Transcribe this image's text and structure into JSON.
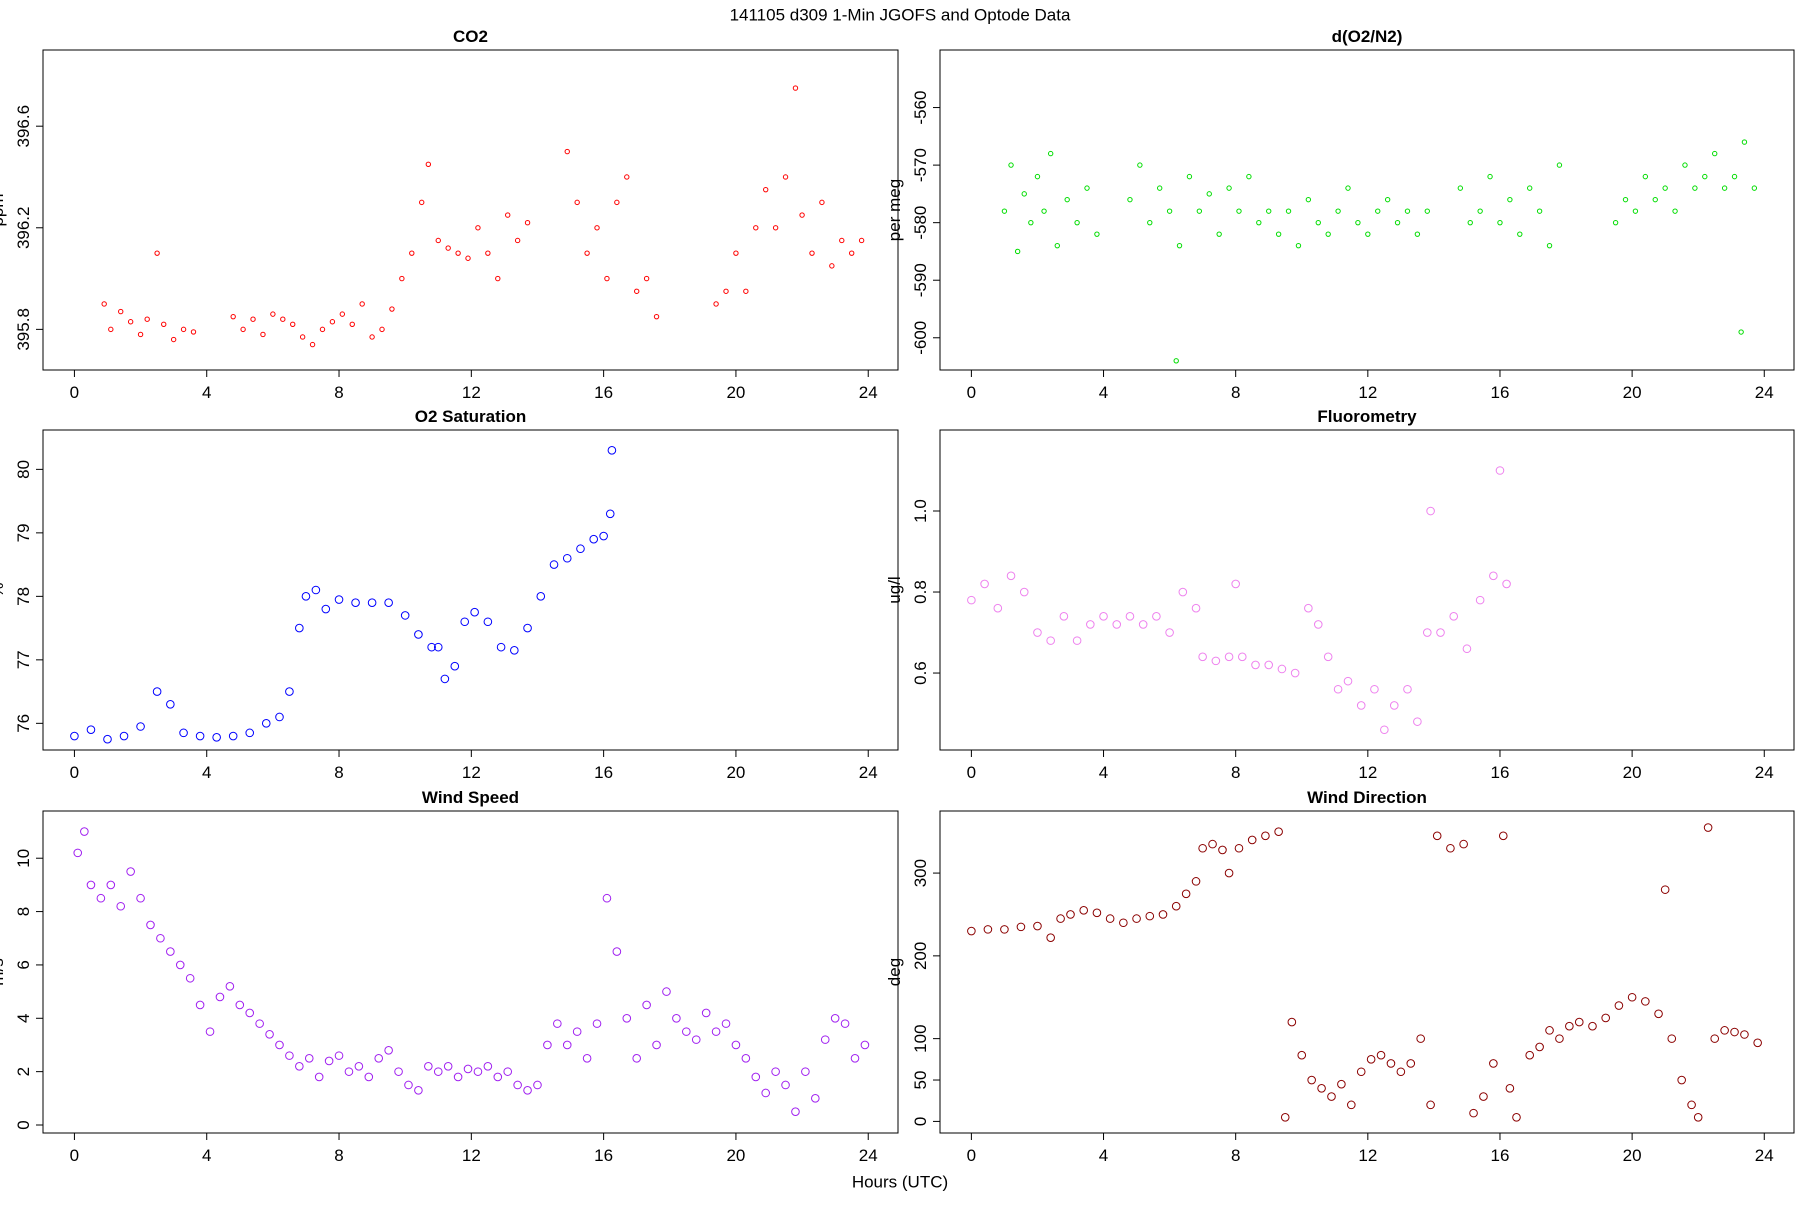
{
  "title": "141105   d309   1-Min  JGOFS and Optode Data",
  "xlabel": "Hours (UTC)",
  "chart_data": [
    {
      "type": "scatter",
      "title": "CO2",
      "ylabel": "ppm",
      "color": "#ff0000",
      "xlim": [
        -0.95,
        24.9
      ],
      "xticks": [
        0,
        4,
        8,
        12,
        16,
        20,
        24
      ],
      "ylim": [
        395.64,
        396.9
      ],
      "yticks": [
        395.8,
        396.2,
        396.6
      ],
      "x": [
        0.9,
        1.1,
        1.4,
        1.7,
        2.0,
        2.2,
        2.5,
        2.7,
        3.0,
        3.3,
        3.6,
        4.8,
        5.1,
        5.4,
        5.7,
        6.0,
        6.3,
        6.6,
        6.9,
        7.2,
        7.5,
        7.8,
        8.1,
        8.4,
        8.7,
        9.0,
        9.3,
        9.6,
        9.9,
        10.2,
        10.5,
        10.7,
        11.0,
        11.3,
        11.6,
        11.9,
        12.2,
        12.5,
        12.8,
        13.1,
        13.4,
        13.7,
        14.9,
        15.2,
        15.5,
        15.8,
        16.1,
        16.4,
        16.7,
        17.0,
        17.3,
        17.6,
        19.4,
        19.7,
        20.0,
        20.3,
        20.6,
        20.9,
        21.2,
        21.5,
        21.8,
        22.0,
        22.3,
        22.6,
        22.9,
        23.2,
        23.5,
        23.8
      ],
      "values": [
        395.9,
        395.8,
        395.87,
        395.83,
        395.78,
        395.84,
        396.1,
        395.82,
        395.76,
        395.8,
        395.79,
        395.85,
        395.8,
        395.84,
        395.78,
        395.86,
        395.84,
        395.82,
        395.77,
        395.74,
        395.8,
        395.83,
        395.86,
        395.82,
        395.9,
        395.77,
        395.8,
        395.88,
        396.0,
        396.1,
        396.3,
        396.45,
        396.15,
        396.12,
        396.1,
        396.08,
        396.2,
        396.1,
        396.0,
        396.25,
        396.15,
        396.22,
        396.5,
        396.3,
        396.1,
        396.2,
        396.0,
        396.3,
        396.4,
        395.95,
        396.0,
        395.85,
        395.9,
        395.95,
        396.1,
        395.95,
        396.2,
        396.35,
        396.2,
        396.4,
        396.75,
        396.25,
        396.1,
        396.3,
        396.05,
        396.15,
        396.1,
        396.15
      ]
    },
    {
      "type": "scatter",
      "title": "d(O2/N2)",
      "ylabel": "per meg",
      "color": "#00dd00",
      "xlim": [
        -0.95,
        24.9
      ],
      "xticks": [
        0,
        4,
        8,
        12,
        16,
        20,
        24
      ],
      "ylim": [
        -605.6,
        -550
      ],
      "yticks": [
        -600,
        -590,
        -580,
        -570,
        -560
      ],
      "x": [
        1.0,
        1.2,
        1.4,
        1.6,
        1.8,
        2.0,
        2.2,
        2.4,
        2.6,
        2.9,
        3.2,
        3.5,
        3.8,
        4.8,
        5.1,
        5.4,
        5.7,
        6.0,
        6.3,
        6.6,
        6.9,
        7.2,
        7.5,
        7.8,
        8.1,
        8.4,
        8.7,
        9.0,
        9.3,
        9.6,
        9.9,
        10.2,
        10.5,
        10.8,
        11.1,
        11.4,
        11.7,
        12.0,
        12.3,
        12.6,
        12.9,
        13.2,
        13.5,
        13.8,
        14.8,
        15.1,
        15.4,
        15.7,
        16.0,
        16.3,
        16.6,
        16.9,
        17.2,
        17.5,
        17.8,
        19.5,
        19.8,
        20.1,
        20.4,
        20.7,
        21.0,
        21.3,
        21.6,
        21.9,
        22.2,
        22.5,
        22.8,
        23.1,
        23.4,
        23.7,
        6.2,
        23.3
      ],
      "values": [
        -578,
        -570,
        -585,
        -575,
        -580,
        -572,
        -578,
        -568,
        -584,
        -576,
        -580,
        -574,
        -582,
        -576,
        -570,
        -580,
        -574,
        -578,
        -584,
        -572,
        -578,
        -575,
        -582,
        -574,
        -578,
        -572,
        -580,
        -578,
        -582,
        -578,
        -584,
        -576,
        -580,
        -582,
        -578,
        -574,
        -580,
        -582,
        -578,
        -576,
        -580,
        -578,
        -582,
        -578,
        -574,
        -580,
        -578,
        -572,
        -580,
        -576,
        -582,
        -574,
        -578,
        -584,
        -570,
        -580,
        -576,
        -578,
        -572,
        -576,
        -574,
        -578,
        -570,
        -574,
        -572,
        -568,
        -574,
        -572,
        -566,
        -574,
        -604,
        -599
      ]
    },
    {
      "type": "scatter",
      "title": "O2 Saturation",
      "ylabel": "%",
      "color": "#0000ff",
      "xlim": [
        -0.95,
        24.9
      ],
      "xticks": [
        0,
        4,
        8,
        12,
        16,
        20,
        24
      ],
      "ylim": [
        75.58,
        80.62
      ],
      "yticks": [
        76,
        77,
        78,
        79,
        80
      ],
      "x": [
        0,
        0.5,
        1,
        1.5,
        2.0,
        2.5,
        2.9,
        3.3,
        3.8,
        4.3,
        4.8,
        5.3,
        5.8,
        6.2,
        6.5,
        6.8,
        7.0,
        7.3,
        7.6,
        8.0,
        8.5,
        9.0,
        9.5,
        10.0,
        10.4,
        10.8,
        11.0,
        11.2,
        11.5,
        11.8,
        12.1,
        12.5,
        12.9,
        13.3,
        13.7,
        14.1,
        14.5,
        14.9,
        15.3,
        15.7,
        16.0,
        16.2,
        16.25
      ],
      "values": [
        75.8,
        75.9,
        75.75,
        75.8,
        75.95,
        76.5,
        76.3,
        75.85,
        75.8,
        75.78,
        75.8,
        75.85,
        76.0,
        76.1,
        76.5,
        77.5,
        78.0,
        78.1,
        77.8,
        77.95,
        77.9,
        77.9,
        77.9,
        77.7,
        77.4,
        77.2,
        77.2,
        76.7,
        76.9,
        77.6,
        77.75,
        77.6,
        77.2,
        77.15,
        77.5,
        78.0,
        78.5,
        78.6,
        78.75,
        78.9,
        78.95,
        79.3,
        80.3
      ]
    },
    {
      "type": "scatter",
      "title": "Fluorometry",
      "ylabel": "ug/l",
      "color": "#ee82ee",
      "xlim": [
        -0.95,
        24.9
      ],
      "xticks": [
        0,
        4,
        8,
        12,
        16,
        20,
        24
      ],
      "ylim": [
        0.41,
        1.2
      ],
      "yticks": [
        0.6,
        0.8,
        {
          "value": 1,
          "label": "1.0"
        }
      ],
      "x": [
        0,
        0.4,
        0.8,
        1.2,
        1.6,
        2.0,
        2.4,
        2.8,
        3.2,
        3.6,
        4.0,
        4.4,
        4.8,
        5.2,
        5.6,
        6.0,
        6.4,
        6.8,
        7.0,
        7.4,
        7.8,
        8.0,
        8.2,
        8.6,
        9.0,
        9.4,
        9.8,
        10.2,
        10.5,
        10.8,
        11.1,
        11.4,
        11.8,
        12.2,
        12.5,
        12.8,
        13.2,
        13.5,
        13.8,
        13.9,
        14.2,
        14.6,
        15.0,
        15.4,
        15.8,
        16.0,
        16.2
      ],
      "values": [
        0.78,
        0.82,
        0.76,
        0.84,
        0.8,
        0.7,
        0.68,
        0.74,
        0.68,
        0.72,
        0.74,
        0.72,
        0.74,
        0.72,
        0.74,
        0.7,
        0.8,
        0.76,
        0.64,
        0.63,
        0.64,
        0.82,
        0.64,
        0.62,
        0.62,
        0.61,
        0.6,
        0.76,
        0.72,
        0.64,
        0.56,
        0.58,
        0.52,
        0.56,
        0.46,
        0.52,
        0.56,
        0.48,
        0.7,
        1.0,
        0.7,
        0.74,
        0.66,
        0.78,
        0.84,
        1.1,
        0.82
      ]
    },
    {
      "type": "scatter",
      "title": "Wind Speed",
      "ylabel": "m/s",
      "color": "#a020f0",
      "xlim": [
        -0.95,
        24.9
      ],
      "xticks": [
        0,
        4,
        8,
        12,
        16,
        20,
        24
      ],
      "ylim": [
        -0.3,
        11.77
      ],
      "yticks": [
        0,
        2,
        4,
        6,
        8,
        10
      ],
      "x": [
        0.1,
        0.3,
        0.5,
        0.8,
        1.1,
        1.4,
        1.7,
        2.0,
        2.3,
        2.6,
        2.9,
        3.2,
        3.5,
        3.8,
        4.1,
        4.4,
        4.7,
        5.0,
        5.3,
        5.6,
        5.9,
        6.2,
        6.5,
        6.8,
        7.1,
        7.4,
        7.7,
        8.0,
        8.3,
        8.6,
        8.9,
        9.2,
        9.5,
        9.8,
        10.1,
        10.4,
        10.7,
        11.0,
        11.3,
        11.6,
        11.9,
        12.2,
        12.5,
        12.8,
        13.1,
        13.4,
        13.7,
        14.0,
        14.3,
        14.6,
        14.9,
        15.2,
        15.5,
        15.8,
        16.1,
        16.4,
        16.7,
        17.0,
        17.3,
        17.6,
        17.9,
        18.2,
        18.5,
        18.8,
        19.1,
        19.4,
        19.7,
        20.0,
        20.3,
        20.6,
        20.9,
        21.2,
        21.5,
        21.8,
        22.1,
        22.4,
        22.7,
        23.0,
        23.3,
        23.6,
        23.9
      ],
      "values": [
        10.2,
        11,
        9,
        8.5,
        9,
        8.2,
        9.5,
        8.5,
        7.5,
        7.0,
        6.5,
        6.0,
        5.5,
        4.5,
        3.5,
        4.8,
        5.2,
        4.5,
        4.2,
        3.8,
        3.4,
        3.0,
        2.6,
        2.2,
        2.5,
        1.8,
        2.4,
        2.6,
        2.0,
        2.2,
        1.8,
        2.5,
        2.8,
        2.0,
        1.5,
        1.3,
        2.2,
        2.0,
        2.2,
        1.8,
        2.1,
        2.0,
        2.2,
        1.8,
        2.0,
        1.5,
        1.3,
        1.5,
        3.0,
        3.8,
        3.0,
        3.5,
        2.5,
        3.8,
        8.5,
        6.5,
        4.0,
        2.5,
        4.5,
        3.0,
        5.0,
        4.0,
        3.5,
        3.2,
        4.2,
        3.5,
        3.8,
        3.0,
        2.5,
        1.8,
        1.2,
        2.0,
        1.5,
        0.5,
        2.0,
        1.0,
        3.2,
        4.0,
        3.8,
        2.5,
        3.0
      ]
    },
    {
      "type": "scatter",
      "title": "Wind Direction",
      "ylabel": "deg",
      "color": "#8b0000",
      "xlim": [
        -0.95,
        24.9
      ],
      "xticks": [
        0,
        4,
        8,
        12,
        16,
        20,
        24
      ],
      "ylim": [
        -14,
        375
      ],
      "yticks": [
        0,
        50,
        100,
        200,
        300
      ],
      "x": [
        0,
        0.5,
        1,
        1.5,
        2.0,
        2.4,
        2.7,
        3.0,
        3.4,
        3.8,
        4.2,
        4.6,
        5.0,
        5.4,
        5.8,
        6.2,
        6.5,
        6.8,
        7.0,
        7.3,
        7.6,
        7.8,
        8.1,
        8.5,
        8.9,
        9.3,
        9.5,
        9.7,
        10.0,
        10.3,
        10.6,
        10.9,
        11.2,
        11.5,
        11.8,
        12.1,
        12.4,
        12.7,
        13.0,
        13.3,
        13.6,
        13.9,
        14.1,
        14.5,
        14.9,
        15.2,
        15.5,
        15.8,
        16.1,
        16.3,
        16.5,
        16.9,
        17.2,
        17.5,
        17.8,
        18.1,
        18.4,
        18.8,
        19.2,
        19.6,
        20.0,
        20.4,
        20.8,
        21.0,
        21.2,
        21.5,
        21.8,
        22.0,
        22.3,
        22.5,
        22.8,
        23.1,
        23.4,
        23.8
      ],
      "values": [
        230,
        232,
        232,
        235,
        236,
        222,
        245,
        250,
        255,
        252,
        245,
        240,
        245,
        248,
        250,
        260,
        275,
        290,
        330,
        335,
        328,
        300,
        330,
        340,
        345,
        350,
        5,
        120,
        80,
        50,
        40,
        30,
        45,
        20,
        60,
        75,
        80,
        70,
        60,
        70,
        100,
        20,
        345,
        330,
        335,
        10,
        30,
        70,
        345,
        40,
        5,
        80,
        90,
        110,
        100,
        115,
        120,
        115,
        125,
        140,
        150,
        145,
        130,
        280,
        100,
        50,
        20,
        5,
        355,
        100,
        110,
        108,
        105,
        95
      ]
    }
  ]
}
